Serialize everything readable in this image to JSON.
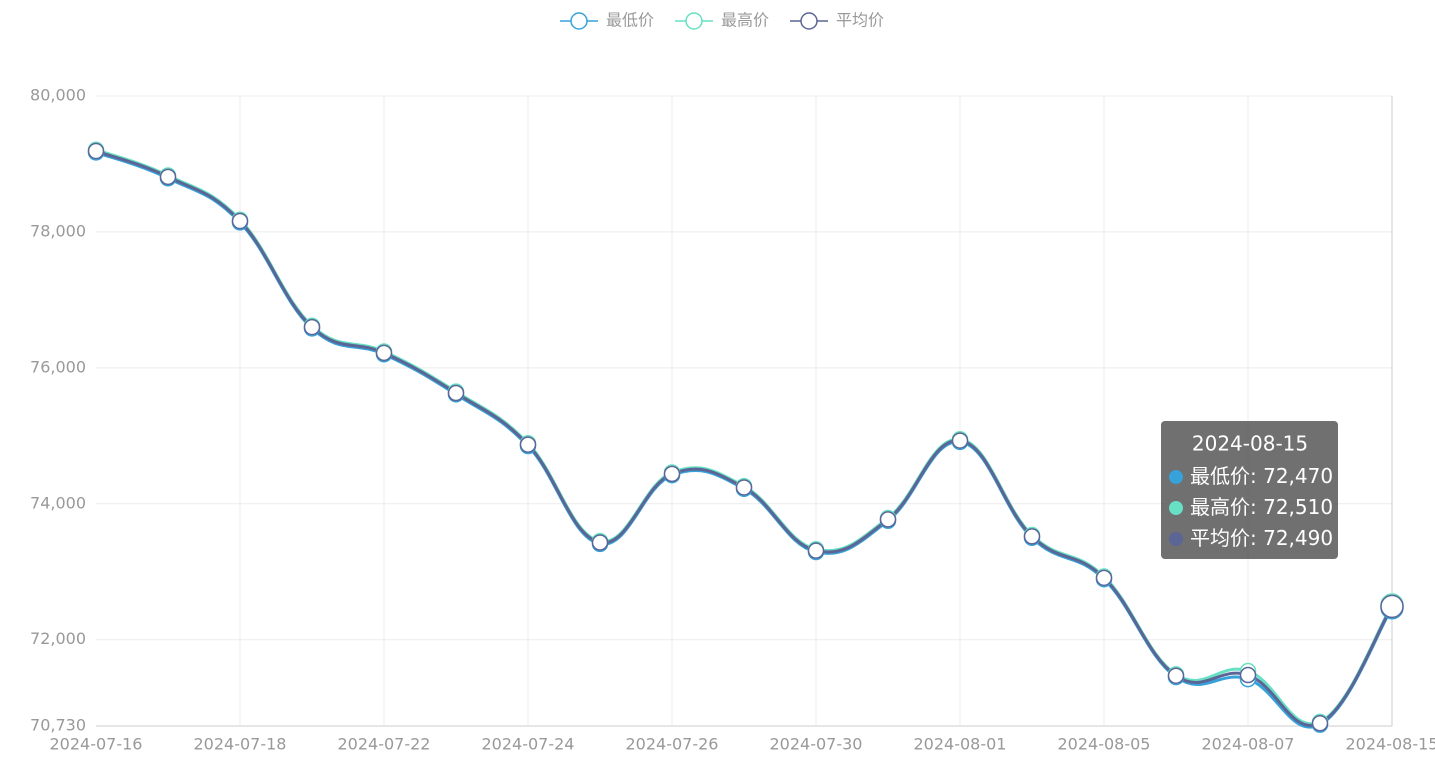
{
  "chart_data": {
    "type": "line",
    "categories": [
      "2024-07-16",
      null,
      "2024-07-18",
      null,
      "2024-07-22",
      null,
      "2024-07-24",
      null,
      "2024-07-26",
      null,
      "2024-07-30",
      null,
      "2024-08-01",
      null,
      "2024-08-05",
      null,
      "2024-08-07",
      null,
      "2024-08-15"
    ],
    "series": [
      {
        "name": "最低价",
        "color": "#37a2da",
        "values": [
          79170,
          78790,
          78140,
          76580,
          76200,
          75610,
          74850,
          73410,
          74420,
          74220,
          73290,
          73750,
          74910,
          73500,
          72890,
          71450,
          71420,
          70750,
          72470
        ]
      },
      {
        "name": "最高价",
        "color": "#67e0c3",
        "values": [
          79210,
          78830,
          78180,
          76620,
          76240,
          75650,
          74890,
          73450,
          74460,
          74260,
          73330,
          73790,
          74950,
          73540,
          72930,
          71490,
          71540,
          70790,
          72510
        ]
      },
      {
        "name": "平均价",
        "color": "#5b6596",
        "values": [
          79190,
          78810,
          78160,
          76600,
          76220,
          75630,
          74870,
          73430,
          74440,
          74240,
          73310,
          73770,
          74930,
          73520,
          72910,
          71470,
          71480,
          70770,
          72490
        ]
      }
    ],
    "ylim": [
      70730,
      80000
    ],
    "yticks": [
      {
        "value": 70730,
        "label": "70,730"
      },
      {
        "value": 72000,
        "label": "72,000"
      },
      {
        "value": 74000,
        "label": "74,000"
      },
      {
        "value": 76000,
        "label": "76,000"
      },
      {
        "value": 78000,
        "label": "78,000"
      },
      {
        "value": 80000,
        "label": "80,000"
      }
    ],
    "grid": true,
    "smooth": true,
    "tooltip": {
      "date": "2024-08-15",
      "value_labels": [
        "72,470",
        "72,510",
        "72,490"
      ]
    }
  }
}
